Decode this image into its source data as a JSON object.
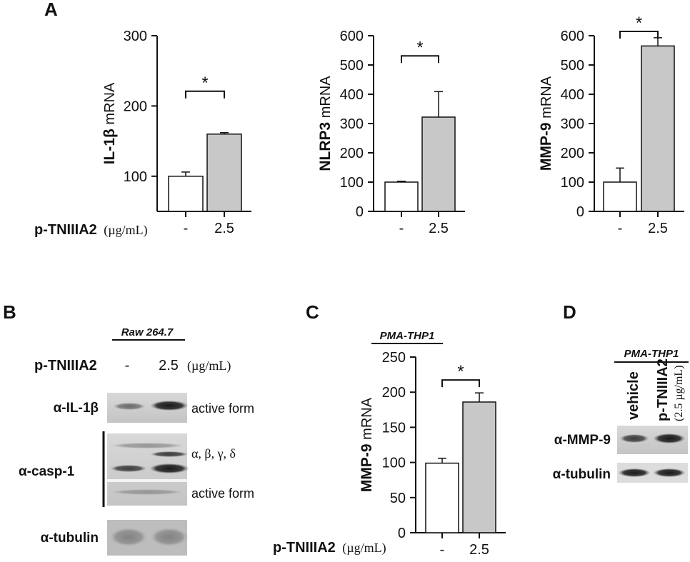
{
  "panels": {
    "A": "A",
    "B": "B",
    "C": "C",
    "D": "D"
  },
  "colors": {
    "control_bar": "#ffffff",
    "treated_bar": "#c8c8c8",
    "axis": "#111111"
  },
  "treatment_label": {
    "bold": "p-TNIIIA2",
    "unit": "(µg/mL)"
  },
  "chart_data": [
    {
      "id": "A-IL1b",
      "type": "bar",
      "categories": [
        "-",
        "2.5"
      ],
      "values": [
        100,
        160
      ],
      "errors": [
        6,
        2
      ],
      "ylim": [
        50,
        300
      ],
      "yticks": [
        100,
        200,
        300
      ],
      "ylabel_bold": "IL-1β",
      "ylabel_rest": " mRNA",
      "significance": "*"
    },
    {
      "id": "A-NLRP3",
      "type": "bar",
      "categories": [
        "-",
        "2.5"
      ],
      "values": [
        100,
        322
      ],
      "errors": [
        3,
        87
      ],
      "ylim": [
        0,
        600
      ],
      "yticks": [
        0,
        100,
        200,
        300,
        400,
        500,
        600
      ],
      "ylabel_bold": "NLRP3",
      "ylabel_rest": " mRNA",
      "significance": "*"
    },
    {
      "id": "A-MMP9",
      "type": "bar",
      "categories": [
        "-",
        "2.5"
      ],
      "values": [
        100,
        565
      ],
      "errors": [
        48,
        28
      ],
      "ylim": [
        0,
        600
      ],
      "yticks": [
        0,
        100,
        200,
        300,
        400,
        500,
        600
      ],
      "ylabel_bold": "MMP-9",
      "ylabel_rest": " mRNA",
      "significance": "*"
    },
    {
      "id": "C-MMP9",
      "type": "bar",
      "title": "PMA-THP1",
      "categories": [
        "-",
        "2.5"
      ],
      "values": [
        99,
        186
      ],
      "errors": [
        7,
        13
      ],
      "ylim": [
        0,
        250
      ],
      "yticks": [
        0,
        50,
        100,
        150,
        200,
        250
      ],
      "ylabel_bold": "MMP-9",
      "ylabel_rest": " mRNA",
      "significance": "*"
    }
  ],
  "panel_b": {
    "cell_line": "Raw 264.7",
    "treatment_bold": "p-TNIIIA2",
    "lanes": [
      "-",
      "2.5"
    ],
    "unit": "(µg/mL)",
    "rows": [
      {
        "label": "α-IL-1β",
        "note": "active form"
      },
      {
        "label": "α-casp-1",
        "note": "α, β, γ, δ",
        "note2": "active form"
      },
      {
        "label": "α-tubulin",
        "note": ""
      }
    ]
  },
  "panel_d": {
    "cell_line": "PMA-THP1",
    "lanes": [
      "vehicle",
      "p-TNIIIA2"
    ],
    "lane_unit": "(2.5 µg/mL)",
    "rows": [
      "α-MMP-9",
      "α-tubulin"
    ]
  }
}
